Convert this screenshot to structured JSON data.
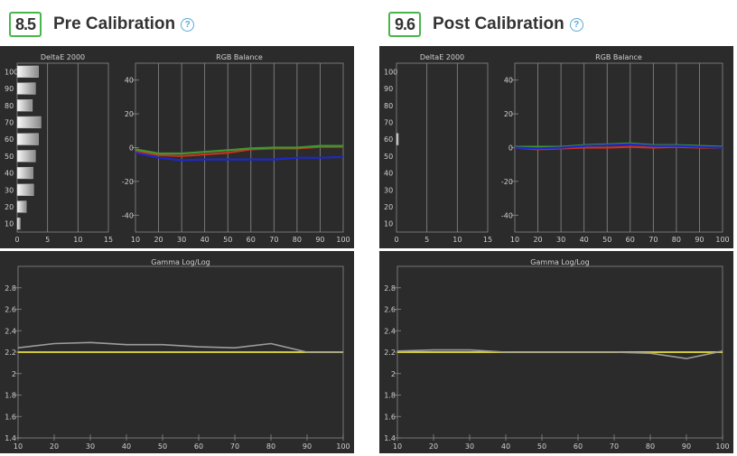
{
  "colors": {
    "panel_bg": "#2b2b2b",
    "grid": "#8a8a8a",
    "text": "#d0d0d0",
    "score_border": "#49b64a",
    "red": "#c8321e",
    "green": "#3c9a32",
    "blue": "#1e28c8",
    "gamma_measured": "#9c9c9c",
    "gamma_target": "#d2c83c"
  },
  "panels": [
    {
      "score": "8.5",
      "title": "Pre Calibration",
      "help_icon": "question-circle-icon",
      "deltae": {
        "title": "DeltaE 2000",
        "y_levels": [
          "100",
          "90",
          "80",
          "70",
          "60",
          "50",
          "40",
          "30",
          "20",
          "10"
        ],
        "values": [
          3.5,
          3.0,
          2.5,
          3.9,
          3.5,
          3.0,
          2.6,
          2.7,
          1.5,
          0.5
        ],
        "xlim": [
          0,
          15
        ],
        "x_ticks": [
          "0",
          "5",
          "10",
          "15"
        ]
      },
      "rgb": {
        "title": "RGB Balance",
        "x": [
          10,
          20,
          30,
          40,
          50,
          60,
          70,
          80,
          90,
          100
        ],
        "ylim": [
          -50,
          50
        ],
        "y_ticks": [
          "40",
          "20",
          "0",
          "-20",
          "-40"
        ],
        "x_ticks": [
          "10",
          "20",
          "30",
          "40",
          "50",
          "60",
          "70",
          "80",
          "90",
          "100"
        ],
        "series": [
          {
            "color_key": "red",
            "values": [
              -2,
              -4.5,
              -5,
              -4,
              -3,
              -1,
              -0.5,
              -0.5,
              0.5,
              0.5
            ]
          },
          {
            "color_key": "green",
            "values": [
              -1,
              -3.5,
              -3.5,
              -2.5,
              -1.5,
              -0.5,
              0,
              0,
              1,
              1
            ]
          },
          {
            "color_key": "blue",
            "values": [
              -3,
              -6,
              -7.5,
              -7,
              -7,
              -7,
              -7,
              -6,
              -6,
              -5.5
            ]
          }
        ]
      },
      "gamma": {
        "title": "Gamma Log/Log",
        "x": [
          10,
          20,
          30,
          40,
          50,
          60,
          70,
          80,
          90,
          100
        ],
        "ylim": [
          1.4,
          3.0
        ],
        "y_ticks": [
          "2.8",
          "2.6",
          "2.4",
          "2.2",
          "2",
          "1.8",
          "1.6",
          "1.4"
        ],
        "x_ticks": [
          "10",
          "20",
          "30",
          "40",
          "50",
          "60",
          "70",
          "80",
          "90",
          "100"
        ],
        "measured": [
          2.24,
          2.28,
          2.29,
          2.27,
          2.27,
          2.25,
          2.24,
          2.28,
          2.2,
          2.2
        ],
        "target": [
          2.2,
          2.2,
          2.2,
          2.2,
          2.2,
          2.2,
          2.2,
          2.2,
          2.2,
          2.2
        ]
      }
    },
    {
      "score": "9.6",
      "title": "Post Calibration",
      "help_icon": "question-circle-icon",
      "deltae": {
        "title": "DeltaE 2000",
        "y_levels": [
          "100",
          "90",
          "80",
          "70",
          "60",
          "50",
          "40",
          "30",
          "20",
          "10"
        ],
        "values": [
          0,
          0,
          0,
          0,
          0.3,
          0,
          0,
          0,
          0,
          0
        ],
        "xlim": [
          0,
          15
        ],
        "x_ticks": [
          "0",
          "5",
          "10",
          "15"
        ]
      },
      "rgb": {
        "title": "RGB Balance",
        "x": [
          10,
          20,
          30,
          40,
          50,
          60,
          70,
          80,
          90,
          100
        ],
        "ylim": [
          -50,
          50
        ],
        "y_ticks": [
          "40",
          "20",
          "0",
          "-20",
          "-40"
        ],
        "x_ticks": [
          "10",
          "20",
          "30",
          "40",
          "50",
          "60",
          "70",
          "80",
          "90",
          "100"
        ],
        "series": [
          {
            "color_key": "red",
            "values": [
              0,
              -1,
              -0.5,
              0,
              0,
              0.5,
              0,
              0.5,
              0,
              0
            ]
          },
          {
            "color_key": "green",
            "values": [
              0.5,
              0.5,
              0.5,
              1.5,
              2,
              2.5,
              1.5,
              1.5,
              1,
              0.5
            ]
          },
          {
            "color_key": "blue",
            "values": [
              0,
              -0.5,
              0,
              1,
              1.5,
              2,
              1,
              1,
              0.5,
              0
            ]
          }
        ]
      },
      "gamma": {
        "title": "Gamma Log/Log",
        "x": [
          10,
          20,
          30,
          40,
          50,
          60,
          70,
          80,
          90,
          100
        ],
        "ylim": [
          1.4,
          3.0
        ],
        "y_ticks": [
          "2.8",
          "2.6",
          "2.4",
          "2.2",
          "2",
          "1.8",
          "1.6",
          "1.4"
        ],
        "x_ticks": [
          "10",
          "20",
          "30",
          "40",
          "50",
          "60",
          "70",
          "80",
          "90",
          "100"
        ],
        "measured": [
          2.21,
          2.22,
          2.22,
          2.2,
          2.2,
          2.2,
          2.2,
          2.19,
          2.14,
          2.21
        ],
        "target": [
          2.2,
          2.2,
          2.2,
          2.2,
          2.2,
          2.2,
          2.2,
          2.2,
          2.2,
          2.2
        ]
      }
    }
  ],
  "chart_data": [
    {
      "type": "bar",
      "title": "DeltaE 2000",
      "panel": "Pre Calibration",
      "categories": [
        "100",
        "90",
        "80",
        "70",
        "60",
        "50",
        "40",
        "30",
        "20",
        "10"
      ],
      "values": [
        3.5,
        3.0,
        2.5,
        3.9,
        3.5,
        3.0,
        2.6,
        2.7,
        1.5,
        0.5
      ],
      "xlim": [
        0,
        15
      ],
      "orientation": "horizontal"
    },
    {
      "type": "line",
      "title": "RGB Balance",
      "panel": "Pre Calibration",
      "x": [
        10,
        20,
        30,
        40,
        50,
        60,
        70,
        80,
        90,
        100
      ],
      "ylim": [
        -50,
        50
      ],
      "series": [
        {
          "values": [
            -2,
            -4.5,
            -5,
            -4,
            -3,
            -1,
            -0.5,
            -0.5,
            0.5,
            0.5
          ]
        },
        {
          "values": [
            -1,
            -3.5,
            -3.5,
            -2.5,
            -1.5,
            -0.5,
            0,
            0,
            1,
            1
          ]
        },
        {
          "values": [
            -3,
            -6,
            -7.5,
            -7,
            -7,
            -7,
            -7,
            -6,
            -6,
            -5.5
          ]
        }
      ]
    },
    {
      "type": "line",
      "title": "Gamma Log/Log",
      "panel": "Pre Calibration",
      "x": [
        10,
        20,
        30,
        40,
        50,
        60,
        70,
        80,
        90,
        100
      ],
      "ylim": [
        1.4,
        3.0
      ],
      "series": [
        {
          "values": [
            2.24,
            2.28,
            2.29,
            2.27,
            2.27,
            2.25,
            2.24,
            2.28,
            2.2,
            2.2
          ]
        },
        {
          "values": [
            2.2,
            2.2,
            2.2,
            2.2,
            2.2,
            2.2,
            2.2,
            2.2,
            2.2,
            2.2
          ]
        }
      ]
    },
    {
      "type": "bar",
      "title": "DeltaE 2000",
      "panel": "Post Calibration",
      "categories": [
        "100",
        "90",
        "80",
        "70",
        "60",
        "50",
        "40",
        "30",
        "20",
        "10"
      ],
      "values": [
        0,
        0,
        0,
        0,
        0.3,
        0,
        0,
        0,
        0,
        0
      ],
      "xlim": [
        0,
        15
      ],
      "orientation": "horizontal"
    },
    {
      "type": "line",
      "title": "RGB Balance",
      "panel": "Post Calibration",
      "x": [
        10,
        20,
        30,
        40,
        50,
        60,
        70,
        80,
        90,
        100
      ],
      "ylim": [
        -50,
        50
      ],
      "series": [
        {
          "values": [
            0,
            -1,
            -0.5,
            0,
            0,
            0.5,
            0,
            0.5,
            0,
            0
          ]
        },
        {
          "values": [
            0.5,
            0.5,
            0.5,
            1.5,
            2,
            2.5,
            1.5,
            1.5,
            1,
            0.5
          ]
        },
        {
          "values": [
            0,
            -0.5,
            0,
            1,
            1.5,
            2,
            1,
            1,
            0.5,
            0
          ]
        }
      ]
    },
    {
      "type": "line",
      "title": "Gamma Log/Log",
      "panel": "Post Calibration",
      "x": [
        10,
        20,
        30,
        40,
        50,
        60,
        70,
        80,
        90,
        100
      ],
      "ylim": [
        1.4,
        3.0
      ],
      "series": [
        {
          "values": [
            2.21,
            2.22,
            2.22,
            2.2,
            2.2,
            2.2,
            2.2,
            2.19,
            2.14,
            2.21
          ]
        },
        {
          "values": [
            2.2,
            2.2,
            2.2,
            2.2,
            2.2,
            2.2,
            2.2,
            2.2,
            2.2,
            2.2
          ]
        }
      ]
    }
  ]
}
